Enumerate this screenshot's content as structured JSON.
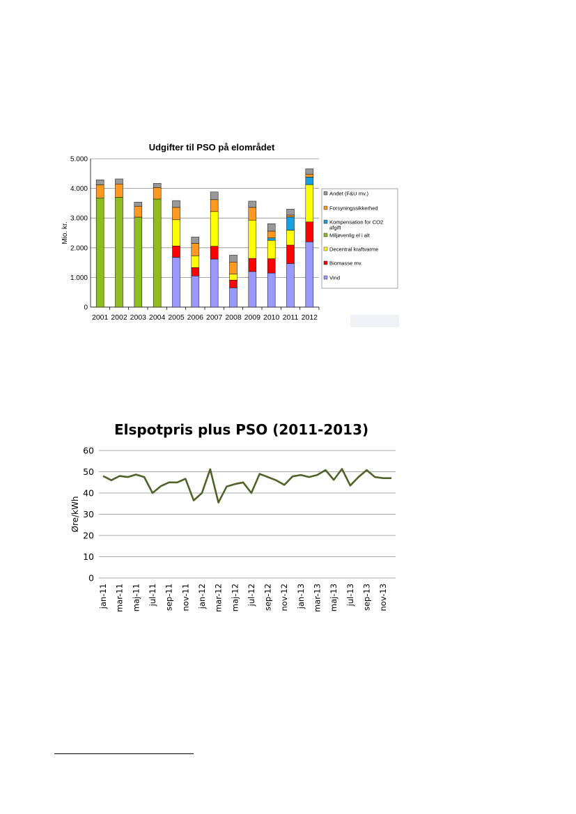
{
  "chart_data": [
    {
      "type": "bar",
      "stacked": true,
      "title": "Udgifter til PSO på elområdet",
      "ylabel": "Mio. kr.",
      "xlabel": "",
      "ylim": [
        0,
        5000
      ],
      "yticks": [
        "0",
        "1.000",
        "2.000",
        "3.000",
        "4.000",
        "5.000"
      ],
      "ytick_values": [
        0,
        1000,
        2000,
        3000,
        4000,
        5000
      ],
      "grid": true,
      "legend_position": "right",
      "categories": [
        "2001",
        "2002",
        "2003",
        "2004",
        "2005",
        "2006",
        "2007",
        "2008",
        "2009",
        "2010",
        "2011",
        "2012"
      ],
      "series": [
        {
          "name": "Vind",
          "color": "#9999ff",
          "values": [
            0,
            0,
            0,
            0,
            1680,
            1050,
            1620,
            650,
            1200,
            1150,
            1470,
            2200
          ]
        },
        {
          "name": "Biomasse mv.",
          "color": "#ff0000",
          "values": [
            0,
            0,
            0,
            0,
            380,
            280,
            430,
            260,
            440,
            480,
            620,
            670
          ]
        },
        {
          "name": "Decentral kraftvarme",
          "color": "#ffff00",
          "values": [
            0,
            0,
            0,
            0,
            890,
            400,
            1170,
            200,
            1290,
            620,
            500,
            1260
          ]
        },
        {
          "name": "Miljøvenlig el i alt",
          "color": "#8fbc1e",
          "values": [
            3680,
            3700,
            3030,
            3640,
            0,
            0,
            0,
            0,
            0,
            0,
            0,
            0
          ]
        },
        {
          "name": "Kompensation for CO2 afgift",
          "color": "#19a0e0",
          "values": [
            0,
            0,
            0,
            0,
            0,
            0,
            0,
            0,
            0,
            80,
            450,
            250
          ]
        },
        {
          "name": "Forsyningssikkerhed",
          "color": "#ff9922",
          "values": [
            440,
            450,
            370,
            390,
            410,
            420,
            400,
            410,
            430,
            230,
            60,
            100
          ]
        },
        {
          "name": "Andet (F&U mv.)",
          "color": "#999999",
          "values": [
            170,
            170,
            140,
            140,
            230,
            210,
            260,
            230,
            210,
            250,
            200,
            180
          ]
        }
      ]
    },
    {
      "type": "line",
      "title": "Elspotpris plus PSO (2011-2013)",
      "ylabel": "Øre/kWh",
      "xlabel": "",
      "ylim": [
        0,
        60
      ],
      "yticks": [
        0,
        10,
        20,
        30,
        40,
        50,
        60
      ],
      "grid": true,
      "x_tick_labels": [
        "jan-11",
        "mar-11",
        "maj-11",
        "jul-11",
        "sep-11",
        "nov-11",
        "jan-12",
        "mar-12",
        "maj-12",
        "jul-12",
        "sep-12",
        "nov-12",
        "jan-13",
        "mar-13",
        "maj-13",
        "jul-13",
        "sep-13",
        "nov-13"
      ],
      "x": [
        "jan-11",
        "feb-11",
        "mar-11",
        "apr-11",
        "maj-11",
        "jun-11",
        "jul-11",
        "aug-11",
        "sep-11",
        "okt-11",
        "nov-11",
        "dec-11",
        "jan-12",
        "feb-12",
        "mar-12",
        "apr-12",
        "maj-12",
        "jun-12",
        "jul-12",
        "aug-12",
        "sep-12",
        "okt-12",
        "nov-12",
        "dec-12",
        "jan-13",
        "feb-13",
        "mar-13",
        "apr-13",
        "maj-13",
        "jun-13",
        "jul-13",
        "aug-13",
        "sep-13",
        "okt-13",
        "nov-13",
        "dec-13"
      ],
      "series": [
        {
          "color": "#4f6228",
          "values": [
            48,
            46,
            48,
            47.5,
            48.7,
            47.5,
            40,
            43.2,
            45,
            45,
            46.7,
            36.5,
            40,
            51.2,
            35.5,
            43,
            44.2,
            45,
            40,
            49,
            47.5,
            46,
            43.8,
            47.8,
            48.5,
            47.5,
            48.5,
            50.8,
            46.2,
            51.3,
            43.5,
            47.5,
            50.8,
            47.5,
            47,
            47
          ]
        }
      ]
    }
  ]
}
